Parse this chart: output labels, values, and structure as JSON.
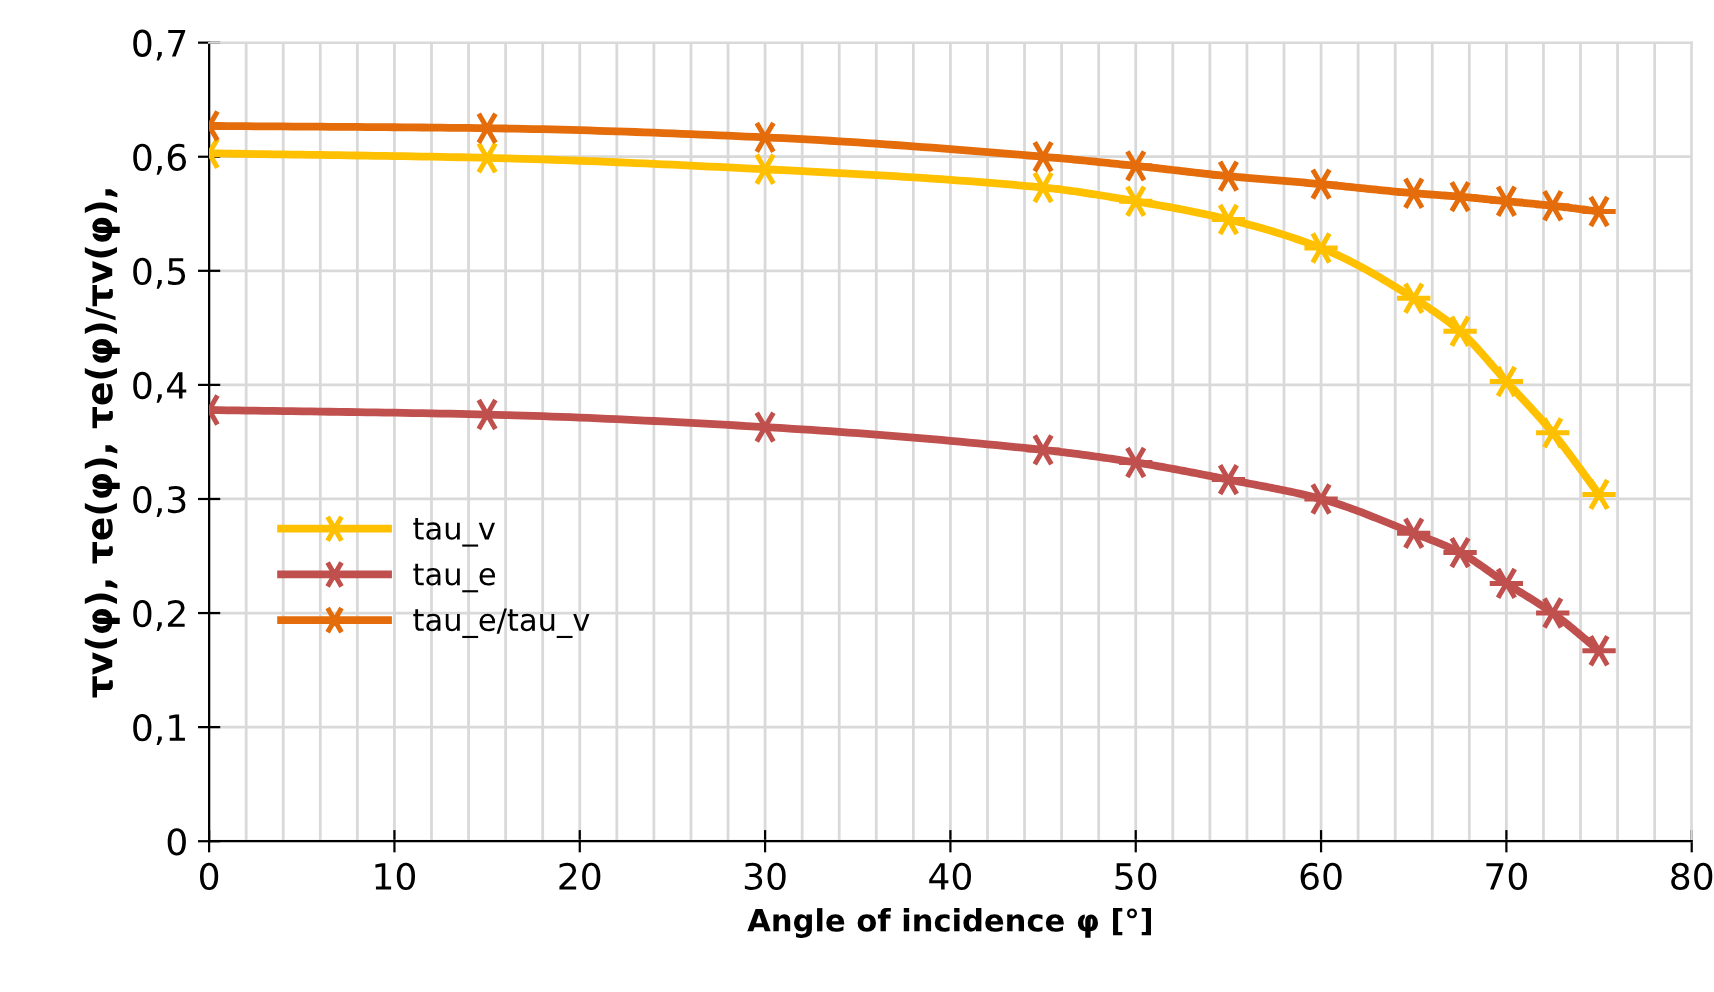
{
  "chart_data": {
    "type": "line",
    "xlabel": "Angle of incidence φ [°]",
    "ylabel": "τv(φ), τe(φ), τe(φ)/τv(φ),",
    "x": [
      0,
      15,
      30,
      45,
      50,
      55,
      60,
      65,
      67.5,
      70,
      72.5,
      75
    ],
    "series": [
      {
        "name": "tau_v",
        "color": "#ffc000",
        "values": [
          0.603,
          0.599,
          0.589,
          0.573,
          0.561,
          0.545,
          0.52,
          0.476,
          0.447,
          0.403,
          0.358,
          0.304
        ]
      },
      {
        "name": "tau_e",
        "color": "#c0504d",
        "values": [
          0.378,
          0.374,
          0.363,
          0.343,
          0.332,
          0.317,
          0.3,
          0.27,
          0.253,
          0.226,
          0.2,
          0.167
        ]
      },
      {
        "name": "tau_e/tau_v",
        "color": "#e46c0a",
        "values": [
          0.627,
          0.625,
          0.617,
          0.6,
          0.592,
          0.583,
          0.576,
          0.568,
          0.565,
          0.561,
          0.557,
          0.552
        ]
      }
    ],
    "xlim": [
      0,
      80
    ],
    "xticks": [
      0,
      10,
      20,
      30,
      40,
      50,
      60,
      70,
      80
    ],
    "ylim": [
      0,
      0.7
    ],
    "yticks": [
      0,
      {
        "value": 0.1,
        "label": "0,1"
      },
      {
        "value": 0.2,
        "label": "0,2"
      },
      {
        "value": 0.3,
        "label": "0,3"
      },
      {
        "value": 0.4,
        "label": "0,4"
      },
      {
        "value": 0.5,
        "label": "0,5"
      },
      {
        "value": 0.6,
        "label": "0,6"
      },
      {
        "value": 0.7,
        "label": "0,7"
      }
    ],
    "grid": true,
    "legend": "bottom left",
    "marker": "cross",
    "line_style": "solid"
  }
}
